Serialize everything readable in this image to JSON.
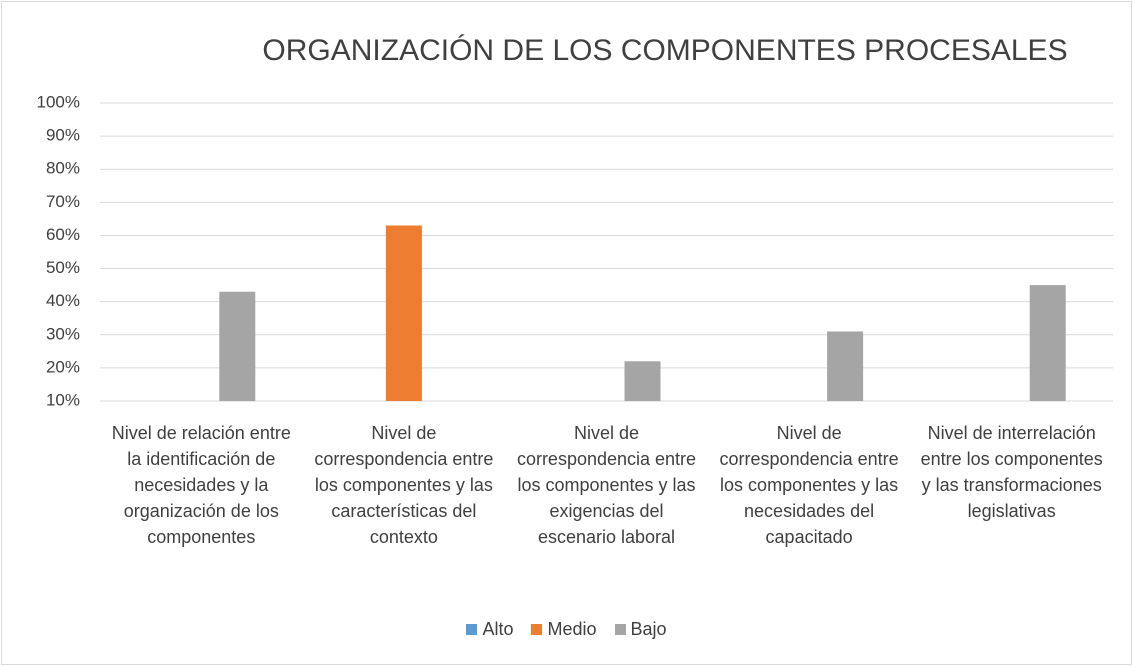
{
  "chart_data": {
    "type": "bar",
    "title": "ORGANIZACIÓN DE LOS COMPONENTES PROCESALES",
    "categories": [
      "Nivel de relación entre la identificación de necesidades y la organización de los componentes",
      "Nivel de correspondencia entre los componentes y las características del contexto",
      "Nivel de correspondencia entre los componentes y las exigencias del escenario laboral",
      "Nivel de correspondencia entre los componentes y las necesidades del capacitado",
      "Nivel de interrelación entre los componentes y las transformaciones legislativas"
    ],
    "series": [
      {
        "name": "Alto",
        "color": "#5b9bd5",
        "values": [
          null,
          null,
          null,
          null,
          null
        ]
      },
      {
        "name": "Medio",
        "color": "#ed7d31",
        "values": [
          null,
          63,
          null,
          null,
          null
        ]
      },
      {
        "name": "Bajo",
        "color": "#a5a5a5",
        "values": [
          43,
          null,
          22,
          31,
          45
        ]
      }
    ],
    "ylim": [
      10,
      100
    ],
    "yticks": [
      {
        "value": 10,
        "label": "10%"
      },
      {
        "value": 20,
        "label": "20%"
      },
      {
        "value": 30,
        "label": "30%"
      },
      {
        "value": 40,
        "label": "40%"
      },
      {
        "value": 50,
        "label": "50%"
      },
      {
        "value": 60,
        "label": "60%"
      },
      {
        "value": 70,
        "label": "70%"
      },
      {
        "value": 80,
        "label": "80%"
      },
      {
        "value": 90,
        "label": "90%"
      },
      {
        "value": 100,
        "label": "100%"
      }
    ],
    "grid": true,
    "legend": "bottom"
  }
}
